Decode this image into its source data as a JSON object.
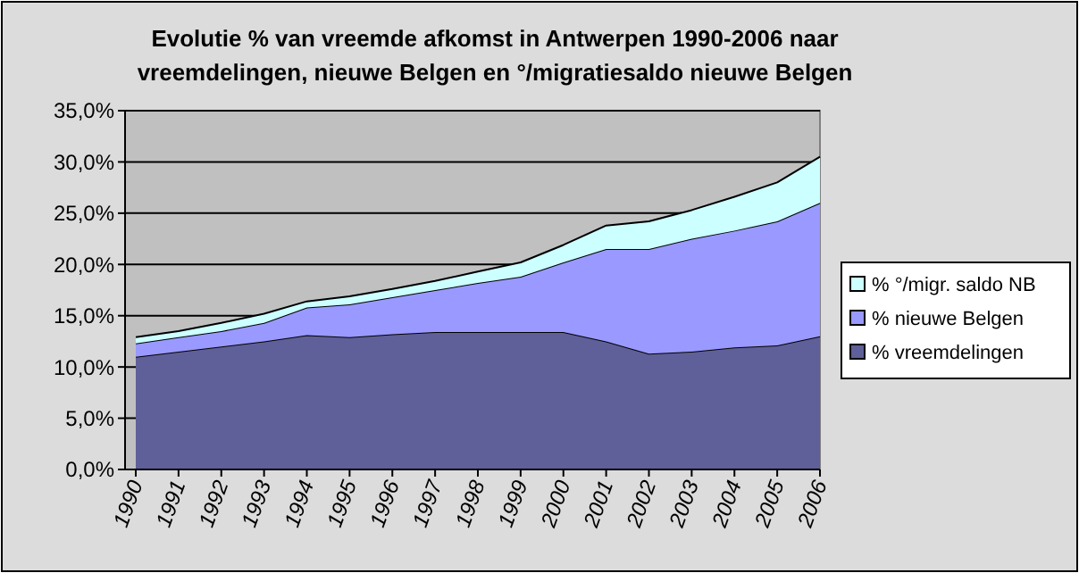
{
  "chart_data": {
    "type": "area",
    "stacked": true,
    "title": "Evolutie %  van vreemde afkomst in Antwerpen 1990-2006 naar vreemdelingen, nieuwe Belgen en °/migratiesaldo nieuwe Belgen",
    "categories": [
      "1990",
      "1991",
      "1992",
      "1993",
      "1994",
      "1995",
      "1996",
      "1997",
      "1998",
      "1999",
      "2000",
      "2001",
      "2002",
      "2003",
      "2004",
      "2005",
      "2006"
    ],
    "series": [
      {
        "name": "% vreemdelingen",
        "color": "#5f5f99",
        "values": [
          11.0,
          11.5,
          12.0,
          12.5,
          13.1,
          12.9,
          13.2,
          13.4,
          13.4,
          13.4,
          13.4,
          12.5,
          11.3,
          11.5,
          11.9,
          12.1,
          13.0
        ]
      },
      {
        "name": "% nieuwe Belgen",
        "color": "#9999ff",
        "values": [
          1.3,
          1.4,
          1.5,
          1.8,
          2.7,
          3.2,
          3.6,
          4.1,
          4.8,
          5.4,
          6.8,
          9.0,
          10.2,
          11.0,
          11.4,
          12.1,
          13.0
        ]
      },
      {
        "name": "% °/migr. saldo NB",
        "color": "#ccffff",
        "values": [
          0.6,
          0.6,
          0.8,
          0.9,
          0.6,
          0.8,
          0.8,
          0.9,
          1.1,
          1.4,
          1.7,
          2.3,
          2.7,
          2.8,
          3.3,
          3.8,
          4.5
        ]
      }
    ],
    "ylim": [
      0,
      35
    ],
    "yticks": [
      {
        "value": 0,
        "label": "0,0%"
      },
      {
        "value": 5,
        "label": "5,0%"
      },
      {
        "value": 10,
        "label": "10,0%"
      },
      {
        "value": 15,
        "label": "15,0%"
      },
      {
        "value": 20,
        "label": "20,0%"
      },
      {
        "value": 25,
        "label": "25,0%"
      },
      {
        "value": 30,
        "label": "30,0%"
      },
      {
        "value": 35,
        "label": "35,0%"
      }
    ],
    "grid": "y",
    "legend": "right"
  }
}
